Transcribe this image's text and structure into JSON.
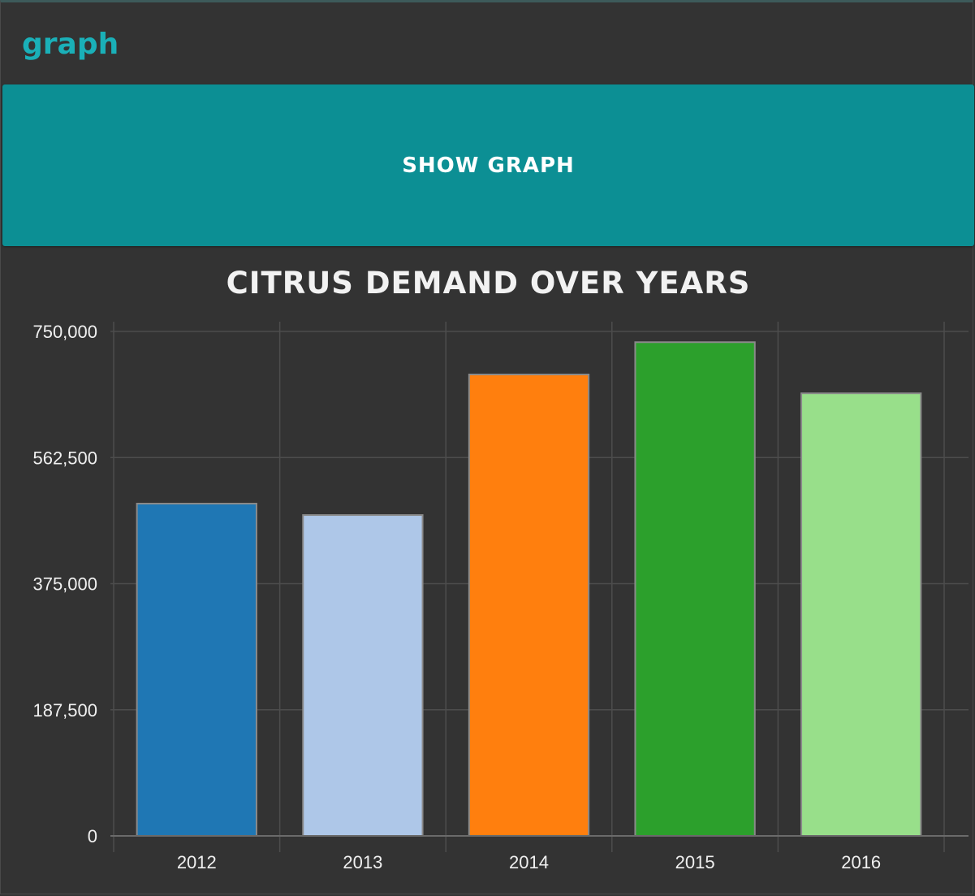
{
  "header": {
    "title": "graph"
  },
  "toolbar": {
    "show_graph_label": "SHOW GRAPH"
  },
  "colors": {
    "background": "#333333",
    "accent": "#0c8f94",
    "title_accent": "#1ab0b8",
    "grid": "#4d4d4d"
  },
  "chart_data": {
    "type": "bar",
    "title": "CITRUS DEMAND OVER YEARS",
    "xlabel": "",
    "ylabel": "",
    "categories": [
      "2012",
      "2013",
      "2014",
      "2015",
      "2016"
    ],
    "values": [
      494000,
      477000,
      686000,
      734000,
      658000
    ],
    "colors": [
      "#1f77b4",
      "#aec7e8",
      "#ff7f0e",
      "#2ca02c",
      "#98df8a"
    ],
    "yticks": [
      0,
      187500,
      375000,
      562500,
      750000
    ],
    "ytick_labels": [
      "0",
      "187,500",
      "375,000",
      "562,500",
      "750,000"
    ],
    "ylim": [
      0,
      750000
    ],
    "grid": true,
    "legend": "none"
  }
}
